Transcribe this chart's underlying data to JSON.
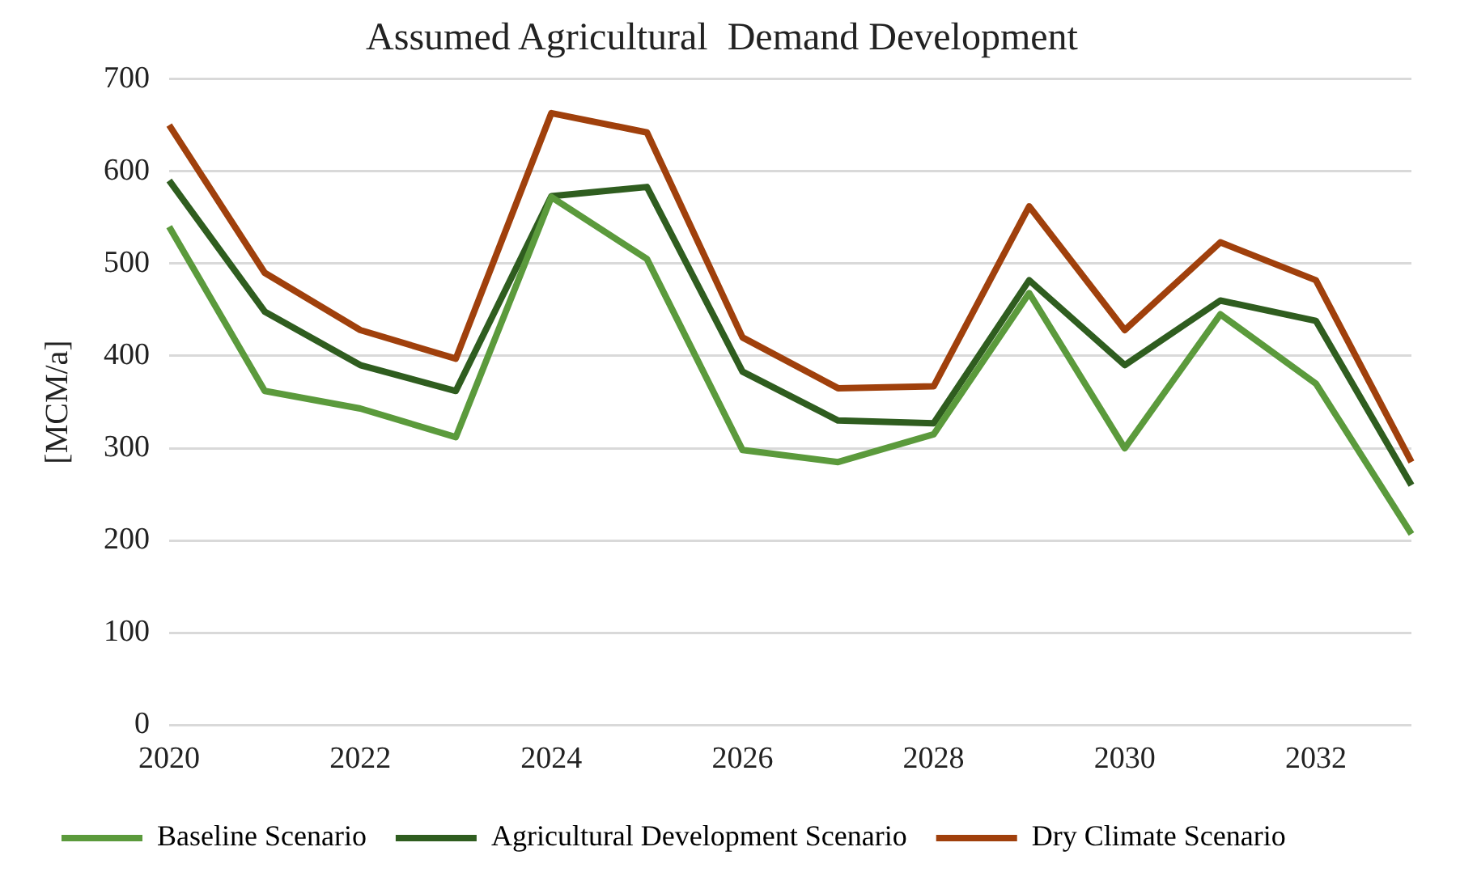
{
  "chart_data": {
    "type": "line",
    "title": "Assumed Agricultural  Demand Development",
    "ylabel": "[MCM/a]",
    "categories": [
      "2020",
      null,
      "2022",
      null,
      "2024",
      null,
      "2026",
      null,
      "2028",
      null,
      "2030",
      null,
      "2032",
      null
    ],
    "series": [
      {
        "name": "Baseline Scenario",
        "color": "#5b9a3c",
        "values": [
          540,
          362,
          343,
          312,
          572,
          505,
          298,
          285,
          315,
          468,
          300,
          445,
          370,
          207
        ]
      },
      {
        "name": "Agricultural Development Scenario",
        "color": "#2f5d1f",
        "values": [
          590,
          448,
          390,
          362,
          573,
          583,
          383,
          330,
          327,
          482,
          390,
          460,
          438,
          260
        ]
      },
      {
        "name": "Dry Climate Scenario",
        "color": "#a0400c",
        "values": [
          650,
          490,
          428,
          397,
          663,
          642,
          420,
          365,
          367,
          562,
          428,
          523,
          482,
          285
        ]
      }
    ],
    "ylim": [
      0,
      700
    ],
    "yticks": [
      0,
      100,
      200,
      300,
      400,
      500,
      600,
      700
    ],
    "grid": "y",
    "legend": "bottom",
    "marker": "none"
  }
}
